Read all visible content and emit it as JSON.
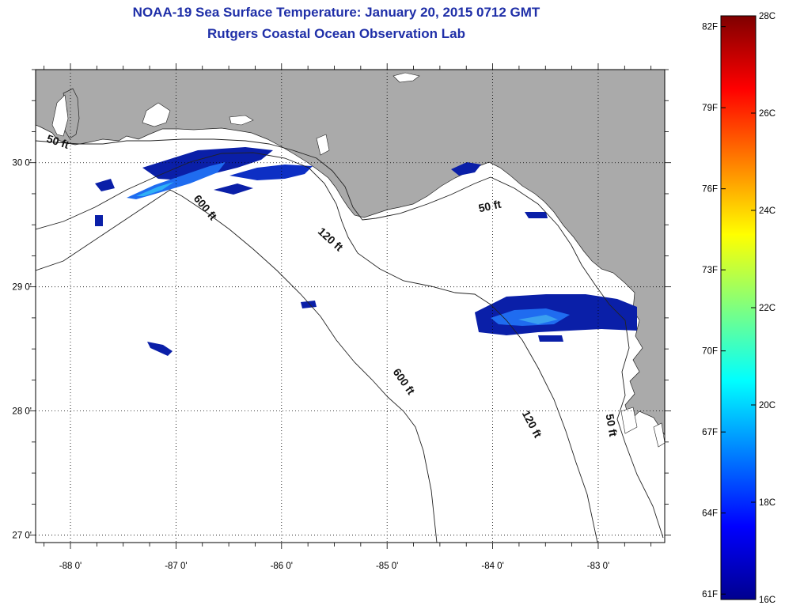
{
  "title": {
    "line1": "NOAA-19 Sea Surface Temperature:  January 20, 2015 0712 GMT",
    "line2": "Rutgers Coastal Ocean Observation Lab"
  },
  "map": {
    "lon_range": [
      -88.33,
      -82.37
    ],
    "lat_range": [
      26.94,
      30.75
    ],
    "x_ticks": [
      {
        "value": -88,
        "label": "-88 0'"
      },
      {
        "value": -87,
        "label": "-87 0'"
      },
      {
        "value": -86,
        "label": "-86 0'"
      },
      {
        "value": -85,
        "label": "-85 0'"
      },
      {
        "value": -84,
        "label": "-84 0'"
      },
      {
        "value": -83,
        "label": "-83 0'"
      }
    ],
    "y_ticks": [
      {
        "value": 30,
        "label": "30 0'"
      },
      {
        "value": 29,
        "label": "29 0'"
      },
      {
        "value": 28,
        "label": "28 0'"
      },
      {
        "value": 27,
        "label": "27 0'"
      }
    ],
    "grid": "dotted",
    "land_color": "#aaaaaa",
    "ocean_color": "#ffffff",
    "contour_labels": [
      {
        "text": "50 ft",
        "lon": -88.13,
        "lat": 30.14
      },
      {
        "text": "600 ft",
        "lon": -86.75,
        "lat": 29.62
      },
      {
        "text": "120 ft",
        "lon": -85.56,
        "lat": 29.36
      },
      {
        "text": "50 ft",
        "lon": -84.02,
        "lat": 29.62
      },
      {
        "text": "600 ft",
        "lon": -84.87,
        "lat": 28.22
      },
      {
        "text": "120 ft",
        "lon": -83.66,
        "lat": 27.88
      },
      {
        "text": "50 ft",
        "lon": -82.91,
        "lat": 27.88
      }
    ]
  },
  "colorbar": {
    "stops": [
      "#00008f",
      "#0000ff",
      "#007fff",
      "#00ffff",
      "#7fff7f",
      "#ffff00",
      "#ff7f00",
      "#ff0000",
      "#7f0000"
    ],
    "celsius_labels": [
      {
        "value": 16,
        "label": "16C"
      },
      {
        "value": 18,
        "label": "18C"
      },
      {
        "value": 20,
        "label": "20C"
      },
      {
        "value": 22,
        "label": "22C"
      },
      {
        "value": 24,
        "label": "24C"
      },
      {
        "value": 26,
        "label": "26C"
      },
      {
        "value": 28,
        "label": "28C"
      }
    ],
    "fahrenheit_labels": [
      {
        "value": 61,
        "label": "61F"
      },
      {
        "value": 64,
        "label": "64F"
      },
      {
        "value": 67,
        "label": "67F"
      },
      {
        "value": 70,
        "label": "70F"
      },
      {
        "value": 73,
        "label": "73F"
      },
      {
        "value": 76,
        "label": "76F"
      },
      {
        "value": 79,
        "label": "79F"
      },
      {
        "value": 82,
        "label": "82F"
      }
    ],
    "range_c": [
      16,
      28
    ]
  }
}
